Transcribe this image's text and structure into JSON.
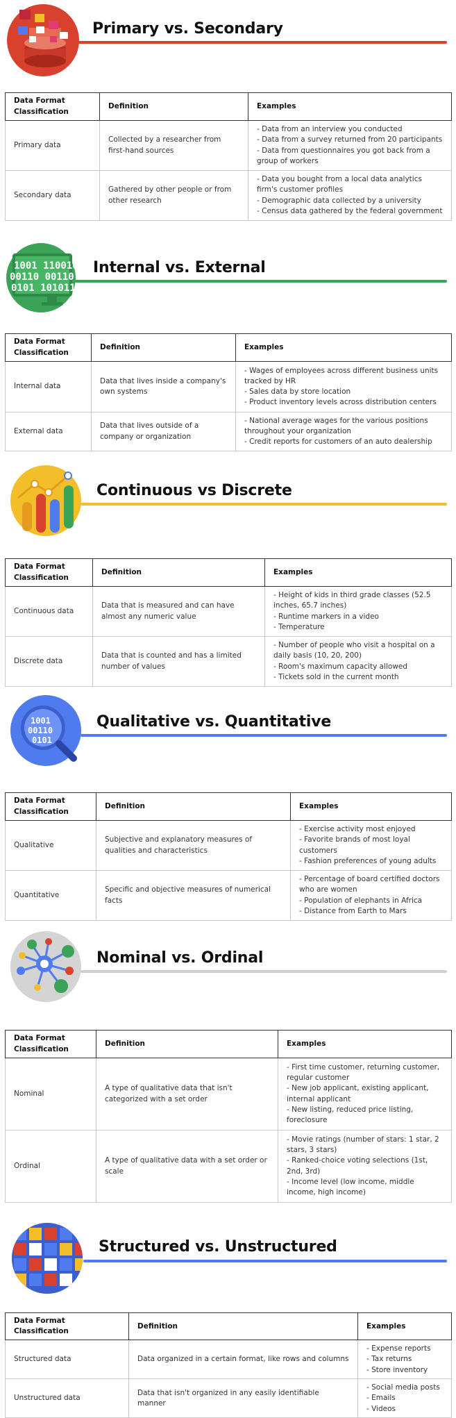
{
  "colors": {
    "red": "#d9412f",
    "green": "#3aa357",
    "yellow": "#f2be2a",
    "blue": "#4f7bef",
    "gray": "#cfcfcf"
  },
  "sections": [
    {
      "title": "Primary vs. Secondary",
      "icon": "database-icon",
      "headers": [
        "Data Format Classification",
        "Definition",
        "Examples"
      ],
      "rows": [
        {
          "classification": "Primary data",
          "definition": "Collected by a researcher from first-hand sources",
          "examples": [
            "- Data from an interview you conducted",
            "- Data from a survey returned from 20 participants",
            "- Data from questionnaires you got back from a group of workers"
          ]
        },
        {
          "classification": "Secondary data",
          "definition": "Gathered by other people or from other research",
          "examples": [
            "- Data you bought from a local data analytics firm's customer profiles",
            "- Demographic data collected by a university",
            "- Census data gathered by the federal government"
          ]
        }
      ]
    },
    {
      "title": "Internal vs. External",
      "icon": "binary-monitor-icon",
      "headers": [
        "Data Format Classification",
        "Definition",
        "Examples"
      ],
      "rows": [
        {
          "classification": "Internal data",
          "definition": "Data that lives inside a company's own systems",
          "examples": [
            "- Wages of employees across different business units tracked by HR",
            "- Sales data by store location",
            "- Product inventory levels across distribution centers"
          ]
        },
        {
          "classification": "External data",
          "definition": "Data that lives outside of a company or organization",
          "examples": [
            "- National average wages for the various positions throughout your organization",
            "- Credit reports for customers of an auto dealership"
          ]
        }
      ]
    },
    {
      "title": "Continuous vs Discrete",
      "icon": "bar-chart-icon",
      "headers": [
        "Data Format Classification",
        "Definition",
        "Examples"
      ],
      "rows": [
        {
          "classification": "Continuous data",
          "definition": "Data that is measured and can have almost any numeric value",
          "examples": [
            "- Height of kids in third grade classes (52.5 inches, 65.7 inches)",
            "- Runtime markers in a video",
            "- Temperature"
          ]
        },
        {
          "classification": "Discrete data",
          "definition": "Data that is counted and has a limited number of values",
          "examples": [
            "- Number of people who visit a hospital on a daily basis (10, 20, 200)",
            "- Room's maximum capacity allowed",
            "- Tickets sold in the current month"
          ]
        }
      ]
    },
    {
      "title": "Qualitative vs. Quantitative",
      "icon": "binary-magnifier-icon",
      "headers": [
        "Data Format Classification",
        "Definition",
        "Examples"
      ],
      "rows": [
        {
          "classification": "Qualitative",
          "definition": "Subjective and explanatory measures of qualities and characteristics",
          "examples": [
            "- Exercise activity most enjoyed",
            "- Favorite brands of most loyal customers",
            "- Fashion preferences of young adults"
          ]
        },
        {
          "classification": "Quantitative",
          "definition": "Specific and objective measures of numerical facts",
          "examples": [
            "- Percentage of board certified doctors who are women",
            "- Population of elephants in Africa",
            "- Distance from Earth to Mars"
          ]
        }
      ]
    },
    {
      "title": "Nominal vs. Ordinal",
      "icon": "network-icon",
      "headers": [
        "Data Format Classification",
        "Definition",
        "Examples"
      ],
      "rows": [
        {
          "classification": "Nominal",
          "definition": "A type of qualitative data that isn't categorized with a set order",
          "examples": [
            "- First time customer, returning customer, regular customer",
            "- New job applicant, existing applicant, internal applicant",
            "- New listing, reduced price listing, foreclosure"
          ]
        },
        {
          "classification": "Ordinal",
          "definition": "A type of qualitative data with a set order or scale",
          "examples": [
            "- Movie ratings (number of stars: 1 star, 2 stars, 3 stars)",
            "- Ranked-choice voting selections (1st, 2nd, 3rd)",
            "- Income level (low income, middle income, high income)"
          ]
        }
      ]
    },
    {
      "title": "Structured vs. Unstructured",
      "icon": "grid-icon",
      "headers": [
        "Data Format Classification",
        "Definition",
        "Examples"
      ],
      "rows": [
        {
          "classification": "Structured data",
          "definition": "Data organized in a certain format, like rows and columns",
          "examples": [
            "- Expense reports",
            "- Tax returns",
            "- Store inventory"
          ]
        },
        {
          "classification": "Unstructured data",
          "definition": "Data that isn't organized in any easily identifiable manner",
          "examples": [
            "- Social media posts",
            "- Emails",
            "- Videos"
          ]
        }
      ]
    }
  ]
}
